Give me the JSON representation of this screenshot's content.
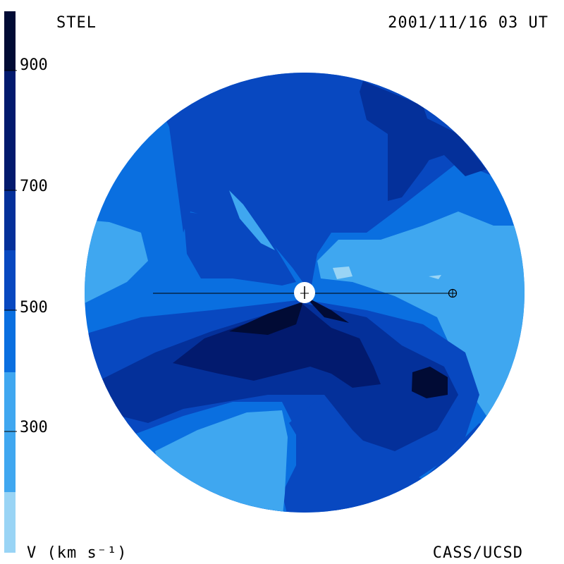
{
  "header": {
    "instrument": "STEL",
    "datetime": "2001/11/16 03 UT"
  },
  "colorbar": {
    "quantity_label": "V (km s⁻¹)",
    "tick_labels": [
      "900",
      "700",
      "500",
      "300"
    ],
    "bands": [
      {
        "color": "#99d4f5"
      },
      {
        "color": "#3fa7f0"
      },
      {
        "color": "#0a6fe0"
      },
      {
        "color": "#0848c0"
      },
      {
        "color": "#04309a"
      },
      {
        "color": "#021a6e"
      },
      {
        "color": "#010b35"
      }
    ]
  },
  "footer": {
    "credit": "CASS/UCSD"
  },
  "colors": {
    "background": "#ffffff",
    "sun": "#ffffff",
    "earth_marker": "#000000"
  },
  "icons": [
    "sun-icon",
    "earth-icon"
  ]
}
